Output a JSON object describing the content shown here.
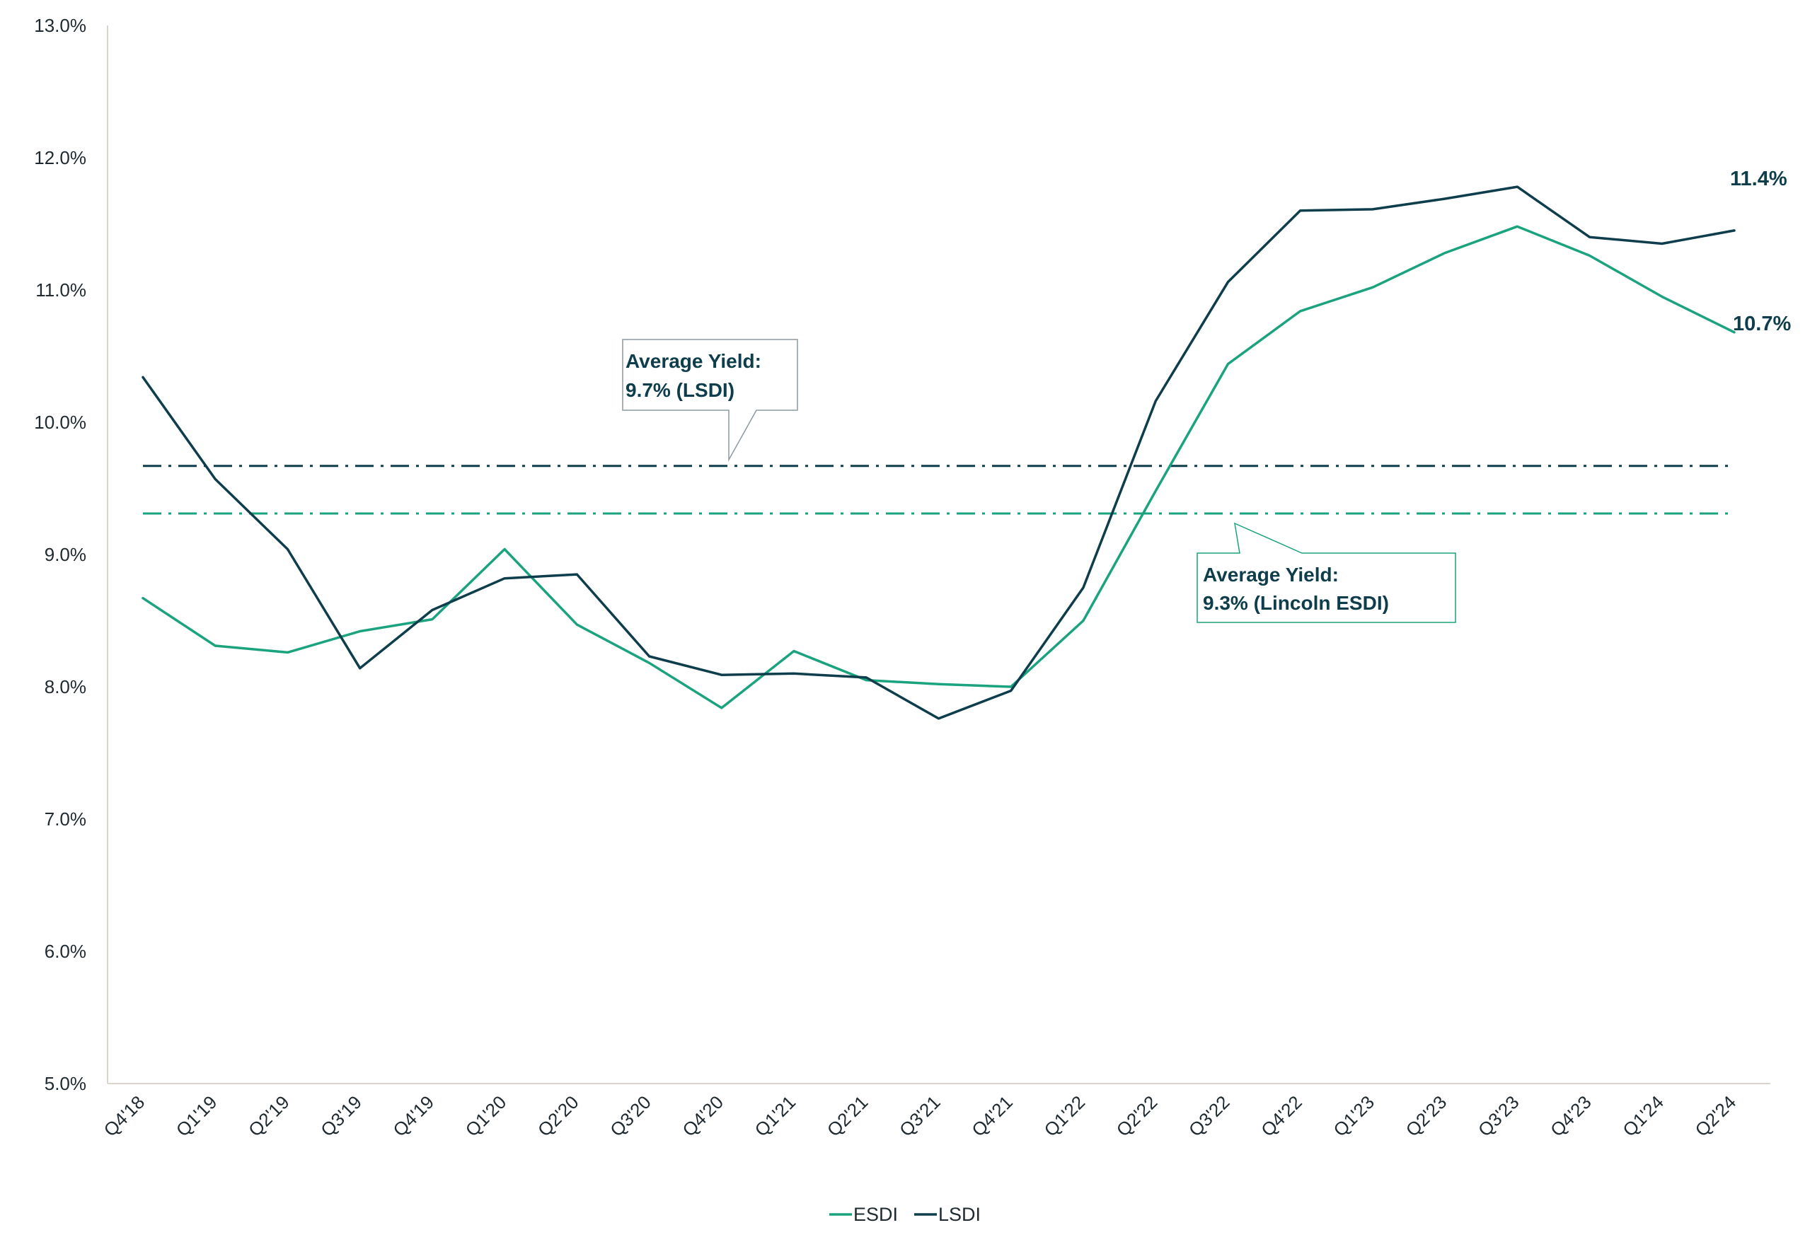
{
  "chart_data": {
    "type": "line",
    "categories": [
      "Q4'18",
      "Q1'19",
      "Q2'19",
      "Q3'19",
      "Q4'19",
      "Q1'20",
      "Q2'20",
      "Q3'20",
      "Q4'20",
      "Q1'21",
      "Q2'21",
      "Q3'21",
      "Q4'21",
      "Q1'22",
      "Q2'22",
      "Q3'22",
      "Q4'22",
      "Q1'23",
      "Q2'23",
      "Q3'23",
      "Q4'23",
      "Q1'24",
      "Q2'24"
    ],
    "series": [
      {
        "name": "ESDI",
        "color": "#1aa37e",
        "values": [
          8.67,
          8.31,
          8.26,
          8.42,
          8.51,
          9.04,
          8.47,
          8.18,
          7.84,
          8.27,
          8.05,
          8.02,
          8.0,
          8.5,
          9.48,
          10.44,
          10.84,
          11.02,
          11.28,
          11.48,
          11.26,
          10.95,
          10.68
        ],
        "end_label": "10.7%"
      },
      {
        "name": "LSDI",
        "color": "#0e3d4c",
        "values": [
          10.34,
          9.57,
          9.04,
          8.14,
          8.58,
          8.82,
          8.85,
          8.23,
          8.09,
          8.1,
          8.07,
          7.76,
          7.97,
          8.75,
          10.16,
          11.06,
          11.6,
          11.61,
          11.69,
          11.78,
          11.4,
          11.35,
          11.45
        ],
        "end_label": "11.4%"
      }
    ],
    "averages": [
      {
        "series": "LSDI",
        "value": 9.67,
        "color": "#0e3d4c",
        "label_line1": "Average Yield:",
        "label_line2": "9.7% (LSDI)"
      },
      {
        "series": "ESDI",
        "value": 9.31,
        "color": "#1aa37e",
        "label_line1": "Average Yield:",
        "label_line2": "9.3% (Lincoln ESDI)"
      }
    ],
    "y_ticks": [
      "5.0%",
      "6.0%",
      "7.0%",
      "8.0%",
      "9.0%",
      "10.0%",
      "11.0%",
      "12.0%",
      "13.0%"
    ],
    "ylim": [
      5,
      13
    ],
    "grid": false,
    "legend_position": "bottom-center",
    "title": "",
    "xlabel": "",
    "ylabel": ""
  },
  "legend": {
    "items": [
      {
        "name": "ESDI",
        "color": "#1aa37e"
      },
      {
        "name": "LSDI",
        "color": "#0e3d4c"
      }
    ]
  },
  "colors": {
    "axis": "#d9d5cc",
    "text": "#1f2a30"
  }
}
